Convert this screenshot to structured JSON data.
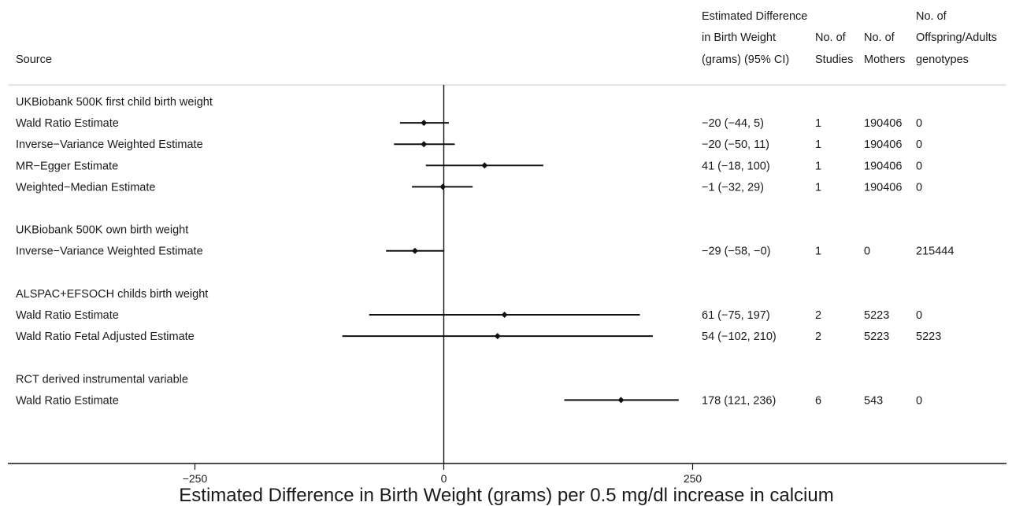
{
  "chart_data": {
    "type": "forest",
    "columns": {
      "source": "Source",
      "estimate": [
        "Estimated Difference",
        "in Birth Weight",
        "(grams) (95% CI)"
      ],
      "studies": [
        "No. of",
        "Studies"
      ],
      "mothers": [
        "No. of",
        "Mothers"
      ],
      "offspring": [
        "No. of",
        "Offspring/Adults",
        "genotypes"
      ]
    },
    "xlabel": "Estimated Difference in Birth Weight (grams) per 0.5 mg/dl increase in calcium",
    "xlim": [
      -440,
      450
    ],
    "x_ticks": [
      -250,
      0,
      250
    ],
    "x_tick_labels": [
      "−250",
      "0",
      "250"
    ],
    "reference_line": 0,
    "groups": [
      {
        "title": "UKBiobank 500K first child birth weight",
        "rows": [
          {
            "label": "Wald Ratio Estimate",
            "estimate": -20,
            "lower": -44,
            "upper": 5,
            "text": "−20 (−44, 5)",
            "studies": "1",
            "mothers": "190406",
            "offspring": "0"
          },
          {
            "label": "Inverse−Variance Weighted Estimate",
            "estimate": -20,
            "lower": -50,
            "upper": 11,
            "text": "−20 (−50, 11)",
            "studies": "1",
            "mothers": "190406",
            "offspring": "0"
          },
          {
            "label": "MR−Egger Estimate",
            "estimate": 41,
            "lower": -18,
            "upper": 100,
            "text": "41 (−18, 100)",
            "studies": "1",
            "mothers": "190406",
            "offspring": "0"
          },
          {
            "label": "Weighted−Median Estimate",
            "estimate": -1,
            "lower": -32,
            "upper": 29,
            "text": "−1 (−32, 29)",
            "studies": "1",
            "mothers": "190406",
            "offspring": "0"
          }
        ]
      },
      {
        "title": "UKBiobank 500K own birth weight",
        "rows": [
          {
            "label": "Inverse−Variance Weighted Estimate",
            "estimate": -29,
            "lower": -58,
            "upper": 0,
            "text": "−29 (−58, −0)",
            "studies": "1",
            "mothers": "0",
            "offspring": "215444"
          }
        ]
      },
      {
        "title": "ALSPAC+EFSOCH childs birth weight",
        "rows": [
          {
            "label": "Wald Ratio Estimate",
            "estimate": 61,
            "lower": -75,
            "upper": 197,
            "text": "61 (−75, 197)",
            "studies": "2",
            "mothers": "5223",
            "offspring": "0"
          },
          {
            "label": "Wald Ratio Fetal Adjusted Estimate",
            "estimate": 54,
            "lower": -102,
            "upper": 210,
            "text": "54 (−102, 210)",
            "studies": "2",
            "mothers": "5223",
            "offspring": "5223"
          }
        ]
      },
      {
        "title": "RCT derived instrumental variable",
        "rows": [
          {
            "label": "Wald Ratio Estimate",
            "estimate": 178,
            "lower": 121,
            "upper": 236,
            "text": "178 (121, 236)",
            "studies": "6",
            "mothers": "543",
            "offspring": "0"
          }
        ]
      }
    ]
  }
}
